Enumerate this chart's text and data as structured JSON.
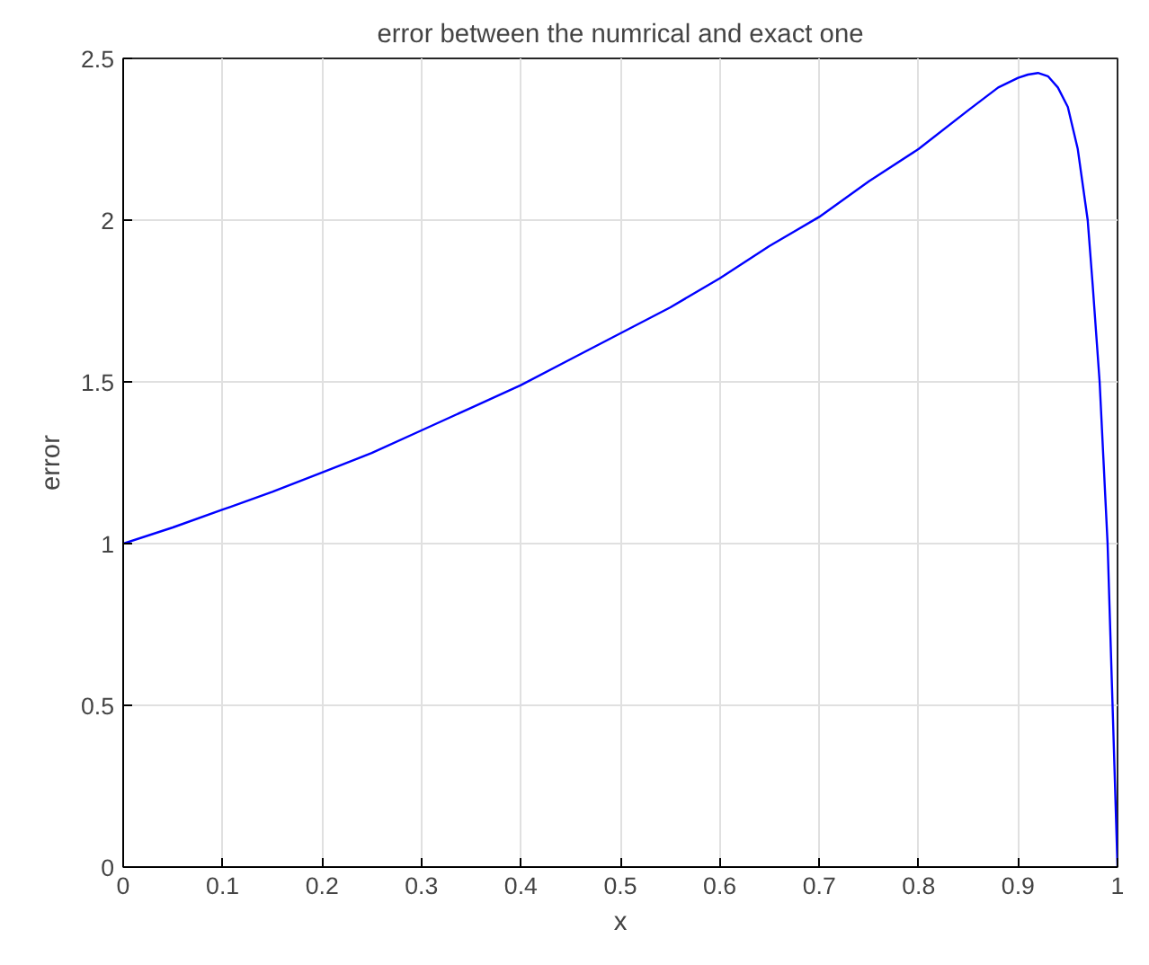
{
  "chart_data": {
    "type": "line",
    "title": "error between the numrical and exact one",
    "xlabel": "x",
    "ylabel": "error",
    "series": [
      {
        "color": "#0000ff",
        "x": [
          0,
          0.05,
          0.1,
          0.15,
          0.2,
          0.25,
          0.3,
          0.35,
          0.4,
          0.45,
          0.5,
          0.55,
          0.6,
          0.65,
          0.7,
          0.75,
          0.8,
          0.85,
          0.88,
          0.9,
          0.91,
          0.92,
          0.93,
          0.94,
          0.95,
          0.96,
          0.97,
          0.975,
          0.982,
          0.99,
          0.995,
          1
        ],
        "values": [
          1,
          1.05,
          1.105,
          1.16,
          1.22,
          1.28,
          1.35,
          1.42,
          1.49,
          1.57,
          1.65,
          1.73,
          1.82,
          1.92,
          2.01,
          2.12,
          2.22,
          2.34,
          2.41,
          2.44,
          2.45,
          2.455,
          2.445,
          2.41,
          2.35,
          2.22,
          2.0,
          1.8,
          1.5,
          1.0,
          0.5,
          0
        ]
      }
    ],
    "xlim": [
      0,
      1
    ],
    "xticks": [
      0,
      0.1,
      0.2,
      0.3,
      0.4,
      0.5,
      0.6,
      0.7,
      0.8,
      0.9,
      1
    ],
    "ylim": [
      0,
      2.5
    ],
    "yticks": [
      0,
      0.5,
      1,
      1.5,
      2,
      2.5
    ],
    "grid": true,
    "line_style": "solid"
  }
}
